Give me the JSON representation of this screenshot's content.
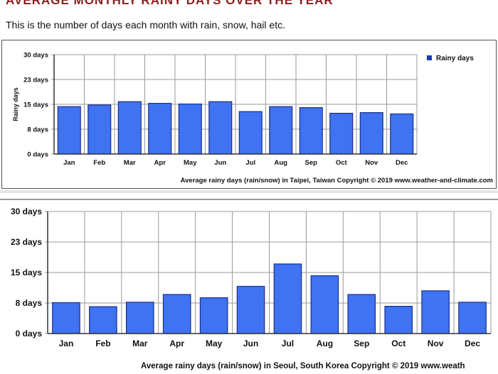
{
  "header": {
    "title": "AVERAGE MONTHLY RAINY DAYS OVER THE YEAR",
    "subtitle": "This is the number of days each month with rain, snow, hail etc."
  },
  "colors": {
    "title": "#8b1e1e",
    "bar": "#3f73f2",
    "bar_border": "#1a2f8a",
    "grid": "#9a9a9a"
  },
  "chart_data": [
    {
      "type": "bar",
      "categories": [
        "Jan",
        "Feb",
        "Mar",
        "Apr",
        "May",
        "Jun",
        "Jul",
        "Aug",
        "Sep",
        "Oct",
        "Nov",
        "Dec"
      ],
      "values": [
        14.3,
        14.8,
        15.8,
        15.3,
        15.1,
        15.8,
        12.8,
        14.3,
        14.0,
        12.3,
        12.5,
        12.1
      ],
      "yticks": [
        "0 days",
        "8 days",
        "15 days",
        "23 days",
        "30 days"
      ],
      "ylim": [
        0,
        30
      ],
      "ylabel": "Rainy days",
      "legend": "Rainy days",
      "caption": "Average rainy days (rain/snow) in Taipei, Taiwan   Copyright © 2019 www.weather-and-climate.com"
    },
    {
      "type": "bar",
      "categories": [
        "Jan",
        "Feb",
        "Mar",
        "Apr",
        "May",
        "Jun",
        "Jul",
        "Aug",
        "Sep",
        "Oct",
        "Nov",
        "Dec"
      ],
      "values": [
        7.6,
        6.6,
        7.7,
        9.6,
        8.8,
        11.6,
        17.1,
        14.2,
        9.6,
        6.7,
        10.5,
        7.7
      ],
      "yticks": [
        "0 days",
        "8 days",
        "15 days",
        "23 days",
        "30 days"
      ],
      "ylim": [
        0,
        30
      ],
      "caption": "Average rainy days (rain/snow) in Seoul, South Korea   Copyright © 2019 www.weath"
    }
  ]
}
